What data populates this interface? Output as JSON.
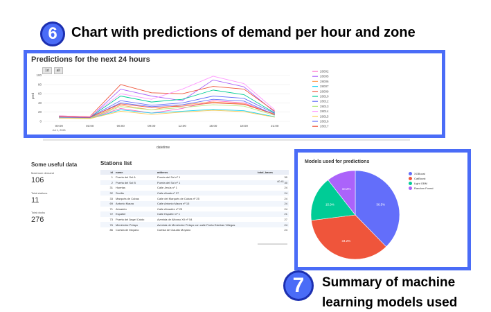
{
  "annotations": {
    "chart_caption": "Chart with predictions of demand per hour and zone",
    "pie_caption": "Summary of machine learning models used",
    "badge6": "6",
    "badge7": "7"
  },
  "chart_data": [
    {
      "type": "line",
      "title": "Predictions for the next 24 hours",
      "xlabel": "datetime",
      "ylabel": "pred",
      "x": [
        "00:00",
        "03:00",
        "06:00",
        "09:00",
        "12:00",
        "15:00",
        "18:00",
        "21:00"
      ],
      "x_sub": "Jul 1, 2021",
      "ylim": [
        0,
        110
      ],
      "yticks": [
        0,
        20,
        40,
        60,
        80,
        100
      ],
      "buttons": [
        "1d",
        "all"
      ],
      "series": [
        {
          "name": "28002",
          "color": "#ff66c4",
          "values": [
            8,
            7,
            28,
            18,
            28,
            45,
            40,
            15
          ]
        },
        {
          "name": "28005",
          "color": "#ab63fa",
          "values": [
            10,
            8,
            70,
            55,
            45,
            90,
            75,
            20
          ]
        },
        {
          "name": "28006",
          "color": "#ffa15a",
          "values": [
            9,
            7,
            35,
            25,
            36,
            42,
            38,
            16
          ]
        },
        {
          "name": "28007",
          "color": "#19d3f3",
          "values": [
            7,
            6,
            25,
            18,
            22,
            26,
            23,
            10
          ]
        },
        {
          "name": "28009",
          "color": "#ef553b",
          "values": [
            12,
            10,
            80,
            62,
            60,
            76,
            70,
            22
          ]
        },
        {
          "name": "28010",
          "color": "#00cc96",
          "values": [
            10,
            9,
            55,
            42,
            48,
            68,
            58,
            18
          ]
        },
        {
          "name": "28012",
          "color": "#636efa",
          "values": [
            11,
            9,
            45,
            35,
            40,
            55,
            50,
            17
          ]
        },
        {
          "name": "28013",
          "color": "#b6e880",
          "values": [
            8,
            7,
            32,
            25,
            30,
            36,
            33,
            13
          ]
        },
        {
          "name": "28014",
          "color": "#ff97ff",
          "values": [
            12,
            10,
            60,
            48,
            70,
            98,
            82,
            25
          ]
        },
        {
          "name": "28015",
          "color": "#fecb52",
          "values": [
            7,
            6,
            22,
            15,
            20,
            24,
            21,
            9
          ]
        },
        {
          "name": "28016",
          "color": "#636efa",
          "values": [
            9,
            8,
            40,
            32,
            36,
            48,
            44,
            14
          ]
        },
        {
          "name": "28017",
          "color": "#ef553b",
          "values": [
            10,
            9,
            38,
            30,
            33,
            40,
            37,
            15
          ]
        }
      ],
      "legend_visible": [
        "28002",
        "28005",
        "28006",
        "28007",
        "28009",
        "28010",
        "28012",
        "28013",
        "28014",
        "28015",
        "28016",
        "28017"
      ]
    },
    {
      "type": "pie",
      "title": "Models used for predictions",
      "series": [
        {
          "name": "XGBoost",
          "color": "#636efa",
          "value": 36.5,
          "label": "36.5%"
        },
        {
          "name": "CatBoost",
          "color": "#ef553b",
          "value": 34.2,
          "label": "34.2%"
        },
        {
          "name": "Light GBM",
          "color": "#00cc96",
          "value": 15.9,
          "label": "15.9%"
        },
        {
          "name": "Random Forest",
          "color": "#ab63fa",
          "value": 10.2,
          "label": "10.2%"
        }
      ]
    }
  ],
  "useful": {
    "title": "Some useful data",
    "metrics": [
      {
        "label": "Maximum demand",
        "value": "106"
      },
      {
        "label": "Total stations",
        "value": "11"
      },
      {
        "label": "Total docks",
        "value": "276"
      }
    ]
  },
  "stations": {
    "title": "Stations list",
    "columns": [
      "id",
      "name",
      "address",
      "total_bases"
    ],
    "extra": "40.41",
    "rows": [
      [
        "1",
        "Puerta del Sol A",
        "Puerta del Sol nº 1",
        "30"
      ],
      [
        "2",
        "Puerta del Sol B",
        "Puerta del Sol nº 1",
        "30"
      ],
      [
        "31",
        "Huertas",
        "Calle Jesús nº 1",
        "24"
      ],
      [
        "32",
        "Sevilla",
        "Calle Alcalá nº 27",
        "24"
      ],
      [
        "33",
        "Marqués de Cubas",
        "Calle del Marqués de Cubas nº 25",
        "24"
      ],
      [
        "69",
        "Antonio Maura",
        "Calle Antonio Maura nº 15",
        "24"
      ],
      [
        "71",
        "Almadén",
        "Calle Almadén nº 25",
        "24"
      ],
      [
        "72",
        "Espalter",
        "Calle Espalter nº 1",
        "21"
      ],
      [
        "73",
        "Puerta del Ángel Caído",
        "Avenida de Alfonso XII nº 54",
        "27"
      ],
      [
        "76",
        "Menéndez Pelayo",
        "Avenida de Menéndez Pelayo con calle Poeta Esteban Villegas",
        "24"
      ],
      [
        "86",
        "Cuesta de Moyano",
        "Cuesta de Claudio Moyano",
        "24"
      ]
    ]
  }
}
